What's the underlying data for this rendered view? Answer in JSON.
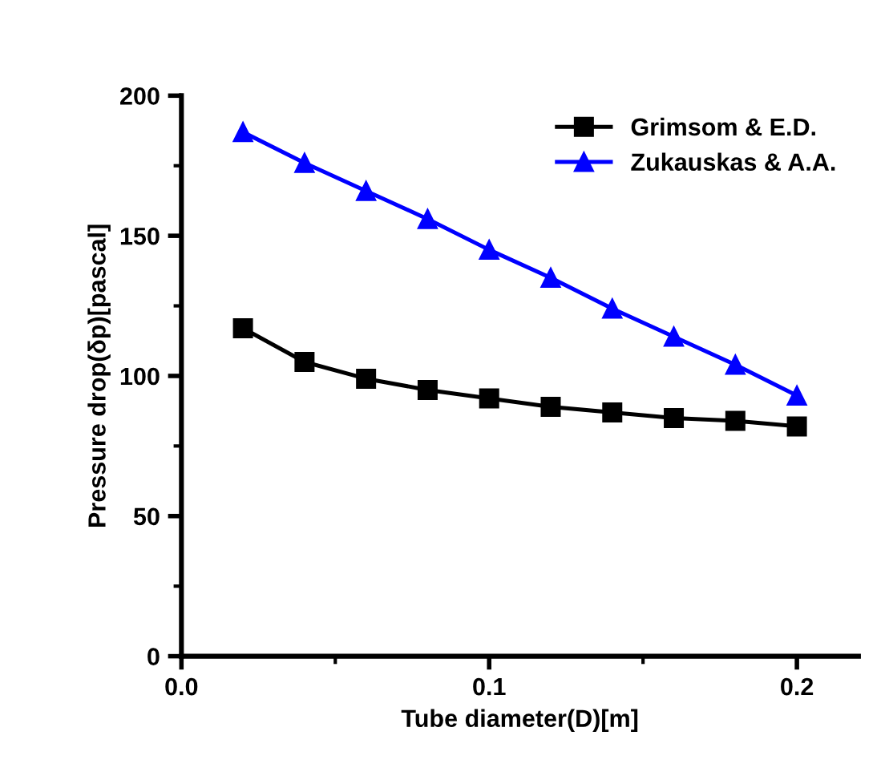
{
  "chart_data": {
    "type": "line",
    "xlabel": "Tube diameter(D)[m]",
    "ylabel": "Pressure drop(δp)[pascal]",
    "x": [
      0.02,
      0.04,
      0.06,
      0.08,
      0.1,
      0.12,
      0.14,
      0.16,
      0.18,
      0.2
    ],
    "series": [
      {
        "name": "Grimsom & E.D.",
        "color": "#000000",
        "marker": "square",
        "values": [
          117,
          105,
          99,
          95,
          92,
          89,
          87,
          85,
          84,
          82
        ]
      },
      {
        "name": "Zukauskas & A.A.",
        "color": "#0000ff",
        "marker": "triangle",
        "values": [
          187,
          176,
          166,
          156,
          145,
          135,
          124,
          114,
          104,
          93
        ]
      }
    ],
    "xlim": [
      0.0,
      0.22
    ],
    "ylim": [
      0,
      200
    ],
    "xticks": [
      {
        "value": 0.0,
        "label": "0.0"
      },
      {
        "value": 0.1,
        "label": "0.1"
      },
      {
        "value": 0.2,
        "label": "0.2"
      }
    ],
    "yticks": [
      0,
      50,
      100,
      150,
      200
    ],
    "legend": "top right",
    "grid": false,
    "line_style": "solid"
  }
}
